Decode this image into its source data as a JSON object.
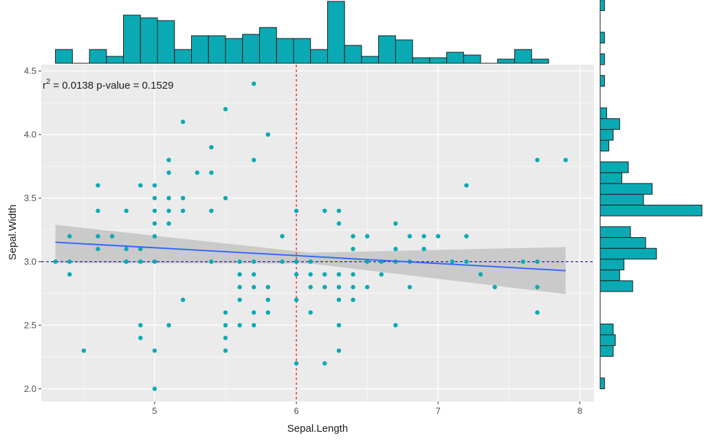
{
  "chart_data": {
    "type": "scatter",
    "title": "",
    "xlabel": "Sepal.Length",
    "ylabel": "Sepal.Width",
    "xlim": [
      4.2,
      8.1
    ],
    "ylim": [
      1.9,
      4.55
    ],
    "x_ticks": [
      5,
      6,
      7,
      8
    ],
    "x_tick_labels": [
      "5",
      "6",
      "7",
      "8"
    ],
    "y_ticks": [
      2.0,
      2.5,
      3.0,
      3.5,
      4.0,
      4.5
    ],
    "y_tick_labels": [
      "2.0",
      "2.5",
      "3.0",
      "3.5",
      "4.0",
      "4.5"
    ],
    "annotation": {
      "r_label": "r",
      "exponent": "2",
      "rest": " = 0.0138 p-value = 0.1529"
    },
    "points": [
      [
        4.3,
        3.0
      ],
      [
        4.4,
        2.9
      ],
      [
        4.4,
        3.0
      ],
      [
        4.4,
        3.2
      ],
      [
        4.5,
        2.3
      ],
      [
        4.6,
        3.1
      ],
      [
        4.6,
        3.2
      ],
      [
        4.6,
        3.4
      ],
      [
        4.6,
        3.6
      ],
      [
        4.7,
        3.2
      ],
      [
        4.8,
        3.0
      ],
      [
        4.8,
        3.1
      ],
      [
        4.8,
        3.4
      ],
      [
        4.9,
        2.4
      ],
      [
        4.9,
        2.5
      ],
      [
        4.9,
        3.0
      ],
      [
        4.9,
        3.1
      ],
      [
        4.9,
        3.6
      ],
      [
        5.0,
        2.0
      ],
      [
        5.0,
        2.3
      ],
      [
        5.0,
        3.0
      ],
      [
        5.0,
        3.2
      ],
      [
        5.0,
        3.3
      ],
      [
        5.0,
        3.4
      ],
      [
        5.0,
        3.5
      ],
      [
        5.0,
        3.6
      ],
      [
        5.1,
        2.5
      ],
      [
        5.1,
        3.3
      ],
      [
        5.1,
        3.4
      ],
      [
        5.1,
        3.5
      ],
      [
        5.1,
        3.7
      ],
      [
        5.1,
        3.8
      ],
      [
        5.2,
        2.7
      ],
      [
        5.2,
        3.4
      ],
      [
        5.2,
        3.5
      ],
      [
        5.2,
        4.1
      ],
      [
        5.3,
        3.7
      ],
      [
        5.4,
        3.0
      ],
      [
        5.4,
        3.4
      ],
      [
        5.4,
        3.7
      ],
      [
        5.4,
        3.9
      ],
      [
        5.5,
        2.3
      ],
      [
        5.5,
        2.4
      ],
      [
        5.5,
        2.5
      ],
      [
        5.5,
        2.6
      ],
      [
        5.5,
        3.5
      ],
      [
        5.5,
        4.2
      ],
      [
        5.6,
        2.5
      ],
      [
        5.6,
        2.7
      ],
      [
        5.6,
        2.8
      ],
      [
        5.6,
        2.9
      ],
      [
        5.6,
        3.0
      ],
      [
        5.7,
        2.5
      ],
      [
        5.7,
        2.6
      ],
      [
        5.7,
        2.8
      ],
      [
        5.7,
        2.9
      ],
      [
        5.7,
        3.0
      ],
      [
        5.7,
        3.8
      ],
      [
        5.7,
        4.4
      ],
      [
        5.8,
        2.6
      ],
      [
        5.8,
        2.7
      ],
      [
        5.8,
        2.8
      ],
      [
        5.8,
        4.0
      ],
      [
        5.9,
        3.0
      ],
      [
        5.9,
        3.2
      ],
      [
        6.0,
        2.2
      ],
      [
        6.0,
        2.7
      ],
      [
        6.0,
        2.9
      ],
      [
        6.0,
        3.0
      ],
      [
        6.0,
        3.4
      ],
      [
        6.1,
        2.6
      ],
      [
        6.1,
        2.8
      ],
      [
        6.1,
        2.9
      ],
      [
        6.1,
        3.0
      ],
      [
        6.2,
        2.2
      ],
      [
        6.2,
        2.8
      ],
      [
        6.2,
        2.9
      ],
      [
        6.2,
        3.4
      ],
      [
        6.3,
        2.3
      ],
      [
        6.3,
        2.5
      ],
      [
        6.3,
        2.7
      ],
      [
        6.3,
        2.8
      ],
      [
        6.3,
        2.9
      ],
      [
        6.3,
        3.3
      ],
      [
        6.3,
        3.4
      ],
      [
        6.4,
        2.7
      ],
      [
        6.4,
        2.8
      ],
      [
        6.4,
        2.9
      ],
      [
        6.4,
        3.1
      ],
      [
        6.4,
        3.2
      ],
      [
        6.5,
        2.8
      ],
      [
        6.5,
        3.0
      ],
      [
        6.5,
        3.2
      ],
      [
        6.6,
        2.9
      ],
      [
        6.6,
        3.0
      ],
      [
        6.7,
        2.5
      ],
      [
        6.7,
        3.0
      ],
      [
        6.7,
        3.1
      ],
      [
        6.7,
        3.3
      ],
      [
        6.8,
        2.8
      ],
      [
        6.8,
        3.0
      ],
      [
        6.8,
        3.2
      ],
      [
        6.9,
        3.1
      ],
      [
        6.9,
        3.2
      ],
      [
        7.0,
        3.2
      ],
      [
        7.1,
        3.0
      ],
      [
        7.2,
        3.0
      ],
      [
        7.2,
        3.2
      ],
      [
        7.2,
        3.6
      ],
      [
        7.3,
        2.9
      ],
      [
        7.4,
        2.8
      ],
      [
        7.6,
        3.0
      ],
      [
        7.7,
        2.6
      ],
      [
        7.7,
        2.8
      ],
      [
        7.7,
        3.0
      ],
      [
        7.7,
        3.8
      ],
      [
        7.9,
        3.8
      ]
    ],
    "regression": {
      "x_range": [
        4.3,
        7.9
      ],
      "intercept": 3.4189,
      "slope": -0.0619,
      "ci_x": [
        4.3,
        6.1,
        7.9
      ],
      "ci_lower": [
        2.99,
        2.985,
        2.745
      ],
      "ci_upper": [
        3.29,
        3.07,
        3.115
      ]
    },
    "vline_x": 6.0,
    "hline_y": 3.0,
    "x_histogram": {
      "bin_start": 4.3,
      "bin_width": 0.12,
      "counts": [
        1,
        0,
        1,
        0.5,
        3.5,
        3.3,
        3.1,
        1,
        2,
        2,
        1.8,
        2.1,
        2.6,
        1.8,
        1.8,
        1,
        4.5,
        1.3,
        0.5,
        2,
        1.7,
        0.4,
        0.4,
        0.8,
        0.6,
        0,
        0.3,
        1,
        0.3
      ]
    },
    "y_histogram": {
      "bin_start": 2.0,
      "bin_width": 0.085,
      "counts": [
        0.2,
        0,
        0,
        0.6,
        0.7,
        0.6,
        0,
        0,
        0,
        1.5,
        0.9,
        1.1,
        2.6,
        2.1,
        1.4,
        0,
        4.7,
        2.0,
        2.4,
        1.0,
        1.3,
        0,
        0.4,
        0.6,
        0.9,
        0.3,
        0,
        0,
        0.2,
        0,
        0.2,
        0,
        0.2,
        0,
        0,
        0.2
      ]
    },
    "colors": {
      "point": "#0aaab4",
      "bar_fill": "#0aaab4",
      "bar_stroke": "#1a1a1a",
      "panel_bg": "#ebebeb",
      "grid": "#ffffff",
      "regression_line": "#3366ff",
      "ci_band": "#c8c8c8",
      "vline": "#e02020",
      "hline": "#1f1f9f"
    }
  }
}
